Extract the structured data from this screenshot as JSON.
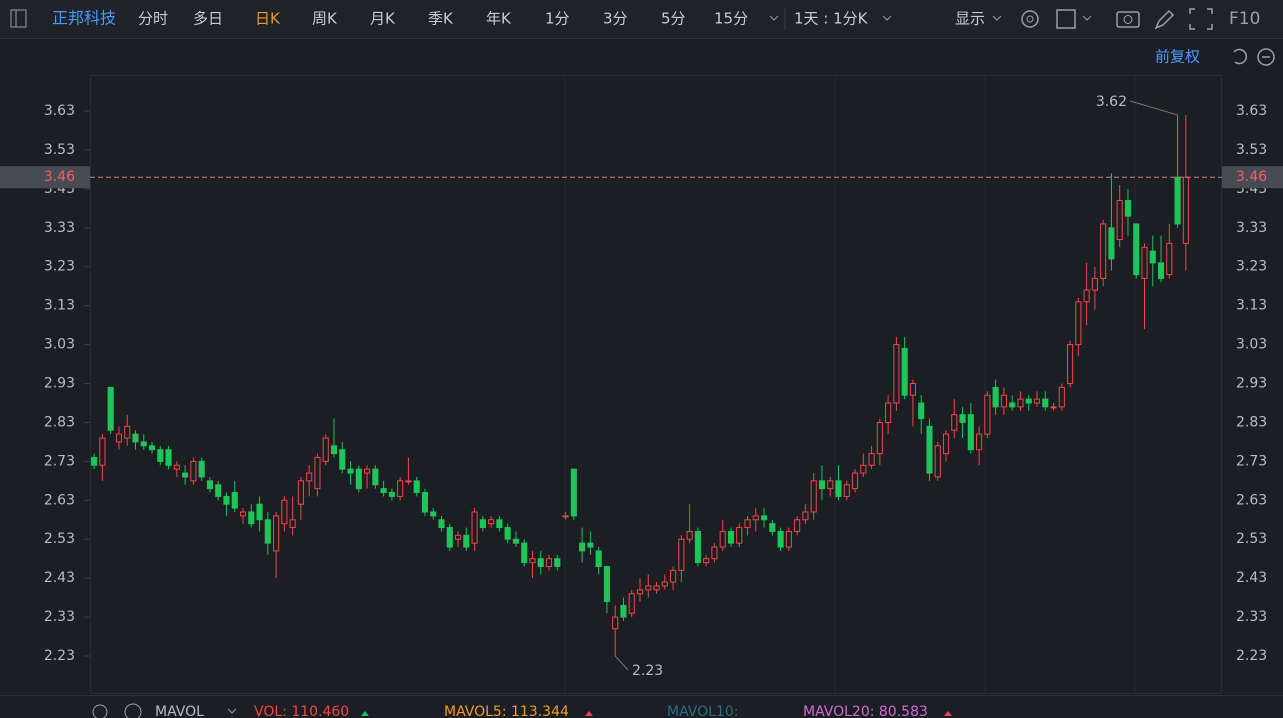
{
  "toolbar": {
    "stock": "正邦科技",
    "tabs": [
      "分时",
      "多日",
      "日K",
      "周K",
      "月K",
      "季K",
      "年K",
      "1分",
      "3分",
      "5分",
      "15分"
    ],
    "active_tab": 2,
    "interval": "1天 : 1分K",
    "display": "显示",
    "f10": "F10"
  },
  "adjust": "前复权",
  "indicator": {
    "name": "MAVOL",
    "vol": "VOL: 110.460",
    "mavol5": "MAVOL5: 113.344",
    "mavol10": "MAVOL10:",
    "mavol20": "MAVOL20: 80.583"
  },
  "chart_data": {
    "type": "candlestick",
    "up_color": "#f0484a",
    "down_color": "#1fc45a",
    "ylim": [
      2.135,
      3.72
    ],
    "yticks": [
      2.23,
      2.33,
      2.43,
      2.53,
      2.63,
      2.73,
      2.83,
      2.93,
      3.03,
      3.13,
      3.23,
      3.33,
      3.43,
      3.53,
      3.63
    ],
    "last": 3.46,
    "max": 3.62,
    "min": 2.23,
    "ohlc": [
      [
        2.74,
        2.75,
        2.71,
        2.72
      ],
      [
        2.72,
        2.8,
        2.68,
        2.79
      ],
      [
        2.92,
        2.92,
        2.8,
        2.81
      ],
      [
        2.78,
        2.82,
        2.76,
        2.8
      ],
      [
        2.79,
        2.85,
        2.77,
        2.82
      ],
      [
        2.8,
        2.81,
        2.76,
        2.78
      ],
      [
        2.78,
        2.8,
        2.76,
        2.77
      ],
      [
        2.77,
        2.78,
        2.75,
        2.76
      ],
      [
        2.76,
        2.77,
        2.72,
        2.73
      ],
      [
        2.76,
        2.77,
        2.71,
        2.72
      ],
      [
        2.71,
        2.73,
        2.69,
        2.72
      ],
      [
        2.7,
        2.72,
        2.67,
        2.69
      ],
      [
        2.68,
        2.74,
        2.67,
        2.73
      ],
      [
        2.73,
        2.74,
        2.68,
        2.69
      ],
      [
        2.68,
        2.69,
        2.65,
        2.66
      ],
      [
        2.67,
        2.68,
        2.63,
        2.64
      ],
      [
        2.64,
        2.65,
        2.59,
        2.62
      ],
      [
        2.65,
        2.68,
        2.6,
        2.61
      ],
      [
        2.59,
        2.61,
        2.57,
        2.6
      ],
      [
        2.6,
        2.62,
        2.56,
        2.57
      ],
      [
        2.62,
        2.64,
        2.55,
        2.58
      ],
      [
        2.58,
        2.6,
        2.49,
        2.52
      ],
      [
        2.5,
        2.6,
        2.43,
        2.59
      ],
      [
        2.57,
        2.64,
        2.55,
        2.63
      ],
      [
        2.56,
        2.64,
        2.54,
        2.58
      ],
      [
        2.62,
        2.69,
        2.58,
        2.68
      ],
      [
        2.68,
        2.72,
        2.64,
        2.7
      ],
      [
        2.66,
        2.75,
        2.64,
        2.74
      ],
      [
        2.73,
        2.8,
        2.72,
        2.79
      ],
      [
        2.77,
        2.84,
        2.74,
        2.75
      ],
      [
        2.76,
        2.78,
        2.7,
        2.71
      ],
      [
        2.71,
        2.73,
        2.67,
        2.7
      ],
      [
        2.71,
        2.72,
        2.65,
        2.66
      ],
      [
        2.7,
        2.72,
        2.66,
        2.71
      ],
      [
        2.71,
        2.72,
        2.66,
        2.67
      ],
      [
        2.66,
        2.68,
        2.64,
        2.65
      ],
      [
        2.65,
        2.66,
        2.63,
        2.64
      ],
      [
        2.64,
        2.69,
        2.63,
        2.68
      ],
      [
        2.68,
        2.74,
        2.67,
        2.68
      ],
      [
        2.68,
        2.69,
        2.64,
        2.65
      ],
      [
        2.65,
        2.66,
        2.59,
        2.6
      ],
      [
        2.6,
        2.61,
        2.58,
        2.59
      ],
      [
        2.58,
        2.59,
        2.55,
        2.56
      ],
      [
        2.56,
        2.57,
        2.5,
        2.51
      ],
      [
        2.53,
        2.55,
        2.51,
        2.54
      ],
      [
        2.54,
        2.56,
        2.5,
        2.51
      ],
      [
        2.52,
        2.61,
        2.5,
        2.6
      ],
      [
        2.58,
        2.59,
        2.55,
        2.56
      ],
      [
        2.57,
        2.59,
        2.56,
        2.58
      ],
      [
        2.58,
        2.59,
        2.55,
        2.56
      ],
      [
        2.56,
        2.57,
        2.52,
        2.53
      ],
      [
        2.53,
        2.55,
        2.51,
        2.52
      ],
      [
        2.52,
        2.53,
        2.46,
        2.47
      ],
      [
        2.47,
        2.5,
        2.43,
        2.48
      ],
      [
        2.48,
        2.5,
        2.44,
        2.46
      ],
      [
        2.46,
        2.49,
        2.45,
        2.48
      ],
      [
        2.48,
        2.49,
        2.45,
        2.46
      ],
      [
        2.59,
        2.6,
        2.58,
        2.59
      ],
      [
        2.71,
        2.71,
        2.58,
        2.59
      ],
      [
        2.52,
        2.56,
        2.47,
        2.5
      ],
      [
        2.52,
        2.55,
        2.49,
        2.51
      ],
      [
        2.5,
        2.51,
        2.44,
        2.46
      ],
      [
        2.46,
        2.46,
        2.34,
        2.37
      ],
      [
        2.3,
        2.36,
        2.23,
        2.33
      ],
      [
        2.36,
        2.38,
        2.32,
        2.33
      ],
      [
        2.34,
        2.4,
        2.33,
        2.39
      ],
      [
        2.39,
        2.43,
        2.37,
        2.4
      ],
      [
        2.4,
        2.44,
        2.38,
        2.41
      ],
      [
        2.4,
        2.42,
        2.39,
        2.41
      ],
      [
        2.41,
        2.44,
        2.4,
        2.42
      ],
      [
        2.42,
        2.46,
        2.4,
        2.45
      ],
      [
        2.45,
        2.54,
        2.42,
        2.53
      ],
      [
        2.53,
        2.62,
        2.52,
        2.55
      ],
      [
        2.55,
        2.56,
        2.46,
        2.47
      ],
      [
        2.47,
        2.49,
        2.46,
        2.48
      ],
      [
        2.48,
        2.52,
        2.47,
        2.51
      ],
      [
        2.51,
        2.58,
        2.5,
        2.55
      ],
      [
        2.55,
        2.56,
        2.51,
        2.52
      ],
      [
        2.52,
        2.57,
        2.51,
        2.56
      ],
      [
        2.56,
        2.59,
        2.54,
        2.58
      ],
      [
        2.58,
        2.61,
        2.55,
        2.59
      ],
      [
        2.59,
        2.61,
        2.56,
        2.58
      ],
      [
        2.57,
        2.58,
        2.54,
        2.55
      ],
      [
        2.55,
        2.56,
        2.5,
        2.51
      ],
      [
        2.51,
        2.56,
        2.5,
        2.55
      ],
      [
        2.55,
        2.59,
        2.54,
        2.58
      ],
      [
        2.58,
        2.62,
        2.57,
        2.6
      ],
      [
        2.6,
        2.7,
        2.58,
        2.68
      ],
      [
        2.68,
        2.72,
        2.63,
        2.66
      ],
      [
        2.66,
        2.69,
        2.64,
        2.68
      ],
      [
        2.68,
        2.72,
        2.63,
        2.64
      ],
      [
        2.64,
        2.68,
        2.63,
        2.67
      ],
      [
        2.66,
        2.71,
        2.65,
        2.7
      ],
      [
        2.7,
        2.75,
        2.69,
        2.72
      ],
      [
        2.72,
        2.77,
        2.71,
        2.75
      ],
      [
        2.75,
        2.84,
        2.72,
        2.83
      ],
      [
        2.83,
        2.9,
        2.8,
        2.88
      ],
      [
        2.88,
        3.05,
        2.86,
        3.03
      ],
      [
        3.02,
        3.05,
        2.89,
        2.9
      ],
      [
        2.9,
        2.94,
        2.82,
        2.93
      ],
      [
        2.88,
        2.9,
        2.8,
        2.84
      ],
      [
        2.82,
        2.84,
        2.68,
        2.7
      ],
      [
        2.69,
        2.78,
        2.68,
        2.77
      ],
      [
        2.75,
        2.81,
        2.73,
        2.8
      ],
      [
        2.81,
        2.89,
        2.79,
        2.85
      ],
      [
        2.85,
        2.87,
        2.79,
        2.83
      ],
      [
        2.85,
        2.88,
        2.75,
        2.76
      ],
      [
        2.76,
        2.82,
        2.72,
        2.8
      ],
      [
        2.8,
        2.91,
        2.79,
        2.9
      ],
      [
        2.92,
        2.94,
        2.85,
        2.87
      ],
      [
        2.87,
        2.92,
        2.85,
        2.9
      ],
      [
        2.88,
        2.9,
        2.86,
        2.87
      ],
      [
        2.87,
        2.91,
        2.86,
        2.89
      ],
      [
        2.89,
        2.9,
        2.86,
        2.88
      ],
      [
        2.88,
        2.91,
        2.87,
        2.89
      ],
      [
        2.89,
        2.91,
        2.86,
        2.87
      ],
      [
        2.87,
        2.88,
        2.86,
        2.87
      ],
      [
        2.87,
        2.93,
        2.86,
        2.92
      ],
      [
        2.93,
        3.04,
        2.92,
        3.03
      ],
      [
        3.03,
        3.15,
        3.0,
        3.14
      ],
      [
        3.14,
        3.24,
        3.08,
        3.17
      ],
      [
        3.17,
        3.23,
        3.12,
        3.2
      ],
      [
        3.2,
        3.35,
        3.18,
        3.34
      ],
      [
        3.33,
        3.47,
        3.22,
        3.25
      ],
      [
        3.3,
        3.44,
        3.28,
        3.4
      ],
      [
        3.4,
        3.43,
        3.31,
        3.36
      ],
      [
        3.34,
        3.34,
        3.2,
        3.21
      ],
      [
        3.2,
        3.29,
        3.07,
        3.28
      ],
      [
        3.27,
        3.31,
        3.18,
        3.24
      ],
      [
        3.24,
        3.31,
        3.19,
        3.2
      ],
      [
        3.21,
        3.34,
        3.2,
        3.29
      ],
      [
        3.46,
        3.62,
        3.33,
        3.34
      ],
      [
        3.29,
        3.62,
        3.22,
        3.46
      ]
    ]
  }
}
